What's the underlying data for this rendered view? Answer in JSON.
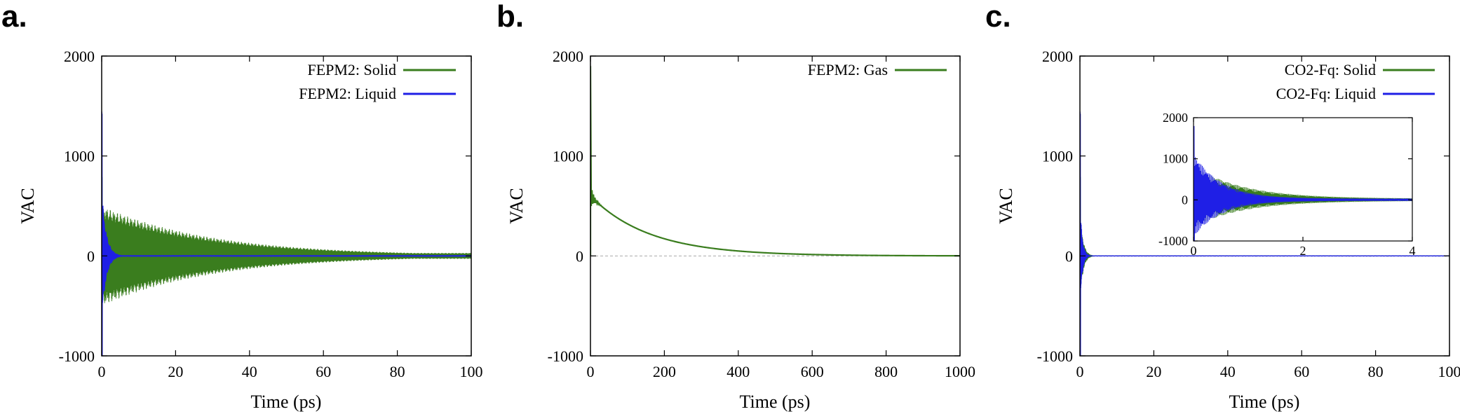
{
  "colors": {
    "solid": "#3a7d1e",
    "liquid": "#1f1fe6",
    "gas": "#3a7d1e",
    "axis": "#000000",
    "zero_line": "#aaaaaa"
  },
  "chart_data": [
    {
      "panel": "a.",
      "type": "line",
      "xlabel": "Time (ps)",
      "ylabel": "VAC",
      "xlim": [
        0,
        100
      ],
      "ylim": [
        -1000,
        2000
      ],
      "x_ticks": [
        "0",
        "20",
        "40",
        "60",
        "80",
        "100"
      ],
      "y_ticks": [
        "-1000",
        "0",
        "1000",
        "2000"
      ],
      "legend": "top-right",
      "series": [
        {
          "name": "FEPM2: Solid",
          "color": "#3a7d1e",
          "kind": "oscillating",
          "peak": 1000,
          "envelope_start": 500,
          "decay_tau": 30,
          "floor": 30
        },
        {
          "name": "FEPM2: Liquid",
          "color": "#1f1fe6",
          "kind": "oscillating",
          "peak": 1800,
          "envelope_start": 700,
          "decay_tau": 1.2,
          "floor": 8
        }
      ]
    },
    {
      "panel": "b.",
      "type": "line",
      "xlabel": "Time (ps)",
      "ylabel": "VAC",
      "xlim": [
        0,
        1000
      ],
      "ylim": [
        -1000,
        2000
      ],
      "x_ticks": [
        "0",
        "200",
        "400",
        "600",
        "800",
        "1000"
      ],
      "y_ticks": [
        "-1000",
        "0",
        "1000",
        "2000"
      ],
      "legend": "top-right",
      "zero_line": true,
      "series": [
        {
          "name": "FEPM2: Gas",
          "color": "#3a7d1e",
          "kind": "exp_decay",
          "peak": 1900,
          "start_value": 600,
          "decay_tau": 160
        }
      ]
    },
    {
      "panel": "c.",
      "type": "line",
      "xlabel": "Time (ps)",
      "ylabel": "VAC",
      "xlim": [
        0,
        100
      ],
      "ylim": [
        -1000,
        2000
      ],
      "x_ticks": [
        "0",
        "20",
        "40",
        "60",
        "80",
        "100"
      ],
      "y_ticks": [
        "-1000",
        "0",
        "1000",
        "2000"
      ],
      "legend": "top-right",
      "series": [
        {
          "name": "CO2-Fq: Solid",
          "color": "#3a7d1e",
          "kind": "oscillating",
          "peak": 1000,
          "envelope_start": 500,
          "decay_tau": 0.8,
          "floor": 5
        },
        {
          "name": "CO2-Fq: Liquid",
          "color": "#1f1fe6",
          "kind": "oscillating",
          "peak": 1800,
          "envelope_start": 600,
          "decay_tau": 0.6,
          "floor": 5
        }
      ],
      "inset": {
        "xlim": [
          0,
          4
        ],
        "ylim": [
          -1000,
          2000
        ],
        "x_ticks": [
          "0",
          "2",
          "4"
        ],
        "y_ticks": [
          "-1000",
          "0",
          "1000",
          "2000"
        ],
        "series": [
          {
            "name": "CO2-Fq: Solid",
            "color": "#3a7d1e",
            "peak": 900,
            "envelope_start": 800,
            "decay_tau": 0.9
          },
          {
            "name": "CO2-Fq: Liquid",
            "color": "#1f1fe6",
            "peak": 1800,
            "envelope_start": 1100,
            "decay_tau": 0.5
          }
        ]
      }
    }
  ]
}
